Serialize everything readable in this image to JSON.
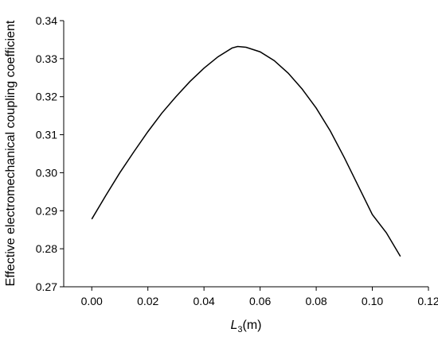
{
  "chart_data": {
    "type": "line",
    "y_label": "Effective electromechanical coupling coefficient",
    "x_label": {
      "symbol": "L",
      "subscript": "3",
      "unit": "(m)"
    },
    "x": [
      0,
      0.005,
      0.01,
      0.015,
      0.02,
      0.025,
      0.03,
      0.035,
      0.04,
      0.045,
      0.05,
      0.052,
      0.055,
      0.06,
      0.065,
      0.07,
      0.075,
      0.08,
      0.085,
      0.09,
      0.095,
      0.1,
      0.105,
      0.11
    ],
    "series": [
      {
        "color": "#000000",
        "values": [
          0.2878,
          0.294,
          0.3,
          0.3055,
          0.3108,
          0.3157,
          0.32,
          0.324,
          0.3275,
          0.3305,
          0.3328,
          0.3332,
          0.333,
          0.3318,
          0.3295,
          0.3262,
          0.322,
          0.317,
          0.311,
          0.304,
          0.2965,
          0.289,
          0.2842,
          0.278
        ]
      }
    ],
    "xlim": [
      -0.01,
      0.12
    ],
    "xticks": [
      {
        "value": 0,
        "label": "0.00"
      },
      0.02,
      0.04,
      0.06,
      0.08,
      {
        "value": 0.1,
        "label": "0.10"
      },
      0.12
    ],
    "ylim": [
      0.27,
      0.34
    ],
    "yticks": [
      0.27,
      0.28,
      0.29,
      {
        "value": 0.3,
        "label": "0.30"
      },
      0.31,
      0.32,
      0.33,
      0.34
    ],
    "grid": false
  }
}
